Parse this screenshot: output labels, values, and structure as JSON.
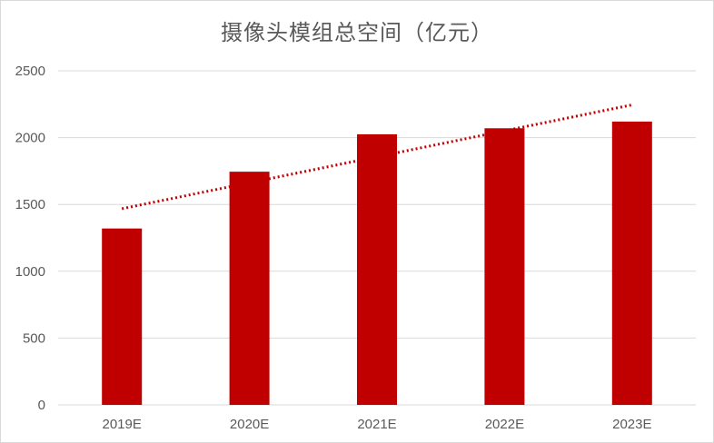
{
  "chart_data": {
    "type": "bar",
    "title": "摄像头模组总空间（亿元）",
    "categories": [
      "2019E",
      "2020E",
      "2021E",
      "2022E",
      "2023E"
    ],
    "series": [
      {
        "values": [
          1320,
          1745,
          2025,
          2070,
          2120
        ]
      }
    ],
    "trendline": {
      "type": "linear",
      "style": "dotted",
      "start": 1468,
      "end": 2245
    },
    "ylim": [
      0,
      2500
    ],
    "yticks": [
      0,
      500,
      1000,
      1500,
      2000,
      2500
    ],
    "grid": true,
    "legend": "none",
    "colors": {
      "bar": "#c00000",
      "trendline": "#c00000",
      "grid": "#d9d9d9",
      "text": "#595959"
    }
  }
}
